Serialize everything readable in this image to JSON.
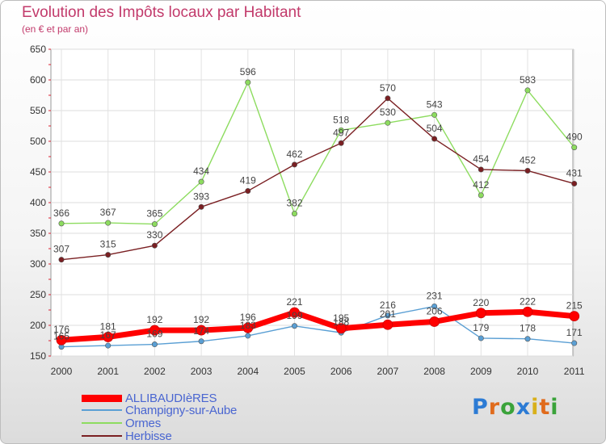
{
  "title": "Evolution des Impôts locaux par Habitant",
  "subtitle": "(en € et par an)",
  "logo": {
    "text": "Proxiti",
    "colors": [
      "#2c7bd4",
      "#e06b1c",
      "#3aa33a",
      "#2c7bd4",
      "#d8b01a",
      "#e06b1c",
      "#3aa33a"
    ]
  },
  "chart_data": {
    "type": "line",
    "x": [
      "2000",
      "2001",
      "2002",
      "2003",
      "2004",
      "2005",
      "2006",
      "2007",
      "2008",
      "2009",
      "2010",
      "2011"
    ],
    "ylim": [
      150,
      650
    ],
    "yticks": [
      "150",
      "200",
      "250",
      "300",
      "350",
      "400",
      "450",
      "500",
      "550",
      "600",
      "650"
    ],
    "grid": true,
    "legend_position": "bottom-left",
    "series": [
      {
        "name": "ALLIBAUDIèRES",
        "color": "#ff0000",
        "values": [
          176,
          181,
          192,
          192,
          196,
          221,
          195,
          201,
          206,
          220,
          222,
          215
        ]
      },
      {
        "name": "Champigny-sur-Aube",
        "color": "#5a9fd4",
        "values": [
          165,
          167,
          169,
          174,
          183,
          199,
          188,
          216,
          231,
          179,
          178,
          171
        ]
      },
      {
        "name": "Ormes",
        "color": "#8ddc5f",
        "values": [
          366,
          367,
          365,
          434,
          596,
          382,
          518,
          530,
          543,
          412,
          583,
          490
        ]
      },
      {
        "name": "Herbisse",
        "color": "#7a1f22",
        "values": [
          307,
          315,
          330,
          393,
          419,
          462,
          497,
          570,
          504,
          454,
          452,
          431
        ]
      }
    ]
  }
}
